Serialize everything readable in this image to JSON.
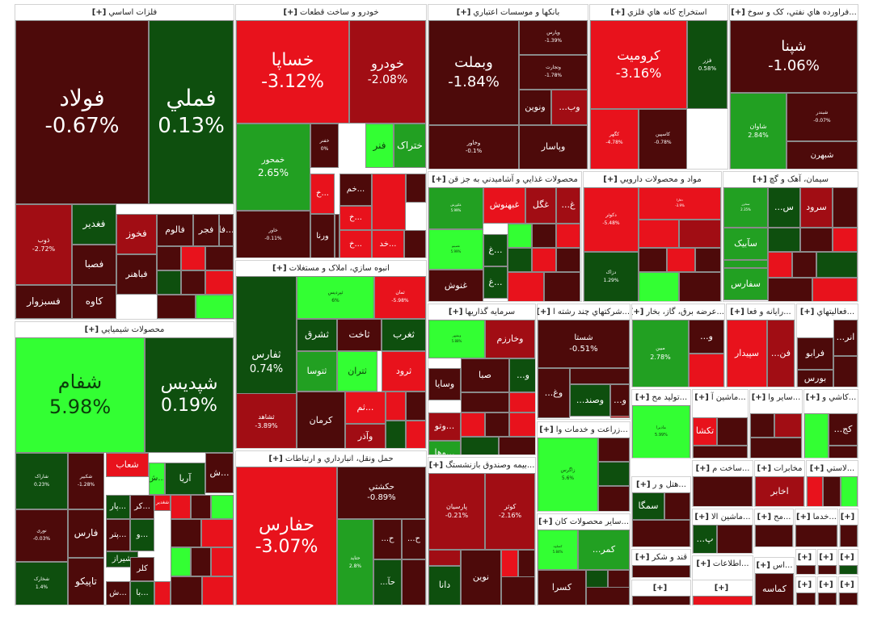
{
  "chart_data": {
    "type": "treemap",
    "title": "",
    "unit": "%",
    "sectors": [
      {
        "id": "s1",
        "name": "فلزات اساسي",
        "plus": "[+]",
        "tiles": [
          {
            "id": "t1",
            "symbol": "فولاد",
            "change": "-0.67%",
            "value": -0.67
          },
          {
            "id": "t2",
            "symbol": "فملي",
            "change": "0.13%",
            "value": 0.13
          },
          {
            "id": "t3",
            "symbol": "ذوب",
            "change": "-2.72%",
            "value": -2.72
          },
          {
            "id": "t4",
            "symbol": "فسبزوار"
          },
          {
            "id": "t5",
            "symbol": "فخوز"
          },
          {
            "id": "t6",
            "symbol": "فالوم"
          },
          {
            "id": "t7",
            "symbol": "فجر"
          },
          {
            "id": "t8",
            "symbol": "فا..."
          },
          {
            "id": "t9",
            "symbol": "فغدير"
          },
          {
            "id": "t10",
            "symbol": "فصبا"
          },
          {
            "id": "t11",
            "symbol": "فباهنر"
          },
          {
            "id": "t12",
            "symbol": "کاوه"
          }
        ]
      },
      {
        "id": "s2",
        "name": "خودرو و ساخت قطعات",
        "plus": "[+]",
        "tiles": [
          {
            "id": "t13",
            "symbol": "خساپا",
            "change": "-3.12%",
            "value": -3.12
          },
          {
            "id": "t14",
            "symbol": "خودرو",
            "change": "-2.08%",
            "value": -2.08
          },
          {
            "id": "t15",
            "symbol": "خمحور",
            "change": "2.65%",
            "value": 2.65
          },
          {
            "id": "t16",
            "symbol": "خفنر",
            "change": "0%",
            "value": 0
          },
          {
            "id": "t17",
            "symbol": "فنر"
          },
          {
            "id": "t18",
            "symbol": "ختراک"
          },
          {
            "id": "t19",
            "symbol": "خاور",
            "change": "-0.11%",
            "value": -0.11
          },
          {
            "id": "t20",
            "symbol": "ورنا"
          },
          {
            "id": "t21",
            "symbol": "خ..."
          },
          {
            "id": "t22",
            "symbol": "خم..."
          },
          {
            "id": "t23",
            "symbol": "خ..."
          },
          {
            "id": "t24",
            "symbol": "خ..."
          },
          {
            "id": "t25",
            "symbol": "خد..."
          }
        ]
      },
      {
        "id": "s3",
        "name": "بانکها و موسسات اعتباري",
        "plus": "[+]",
        "tiles": [
          {
            "id": "t26",
            "symbol": "وبملت",
            "change": "-1.84%",
            "value": -1.84
          },
          {
            "id": "t27",
            "symbol": "وپارس",
            "change": "-1.39%",
            "value": -1.39
          },
          {
            "id": "t28",
            "symbol": "وتجارت",
            "change": "-1.78%",
            "value": -1.78
          },
          {
            "id": "t29",
            "symbol": "ونوين"
          },
          {
            "id": "t30",
            "symbol": "...وب"
          },
          {
            "id": "t31",
            "symbol": "وخاور",
            "change": "-0.1%",
            "value": -0.1
          },
          {
            "id": "t32",
            "symbol": "وپاسار"
          }
        ]
      },
      {
        "id": "s4",
        "name": "استخراج کانه هاي فلزي",
        "plus": "[+]",
        "tiles": [
          {
            "id": "t33",
            "symbol": "کروميت",
            "change": "-3.16%",
            "value": -3.16
          },
          {
            "id": "t34",
            "symbol": "فزر",
            "change": "0.58%",
            "value": 0.58
          },
          {
            "id": "t35",
            "symbol": "کگهر",
            "change": "-4.78%",
            "value": -4.78
          },
          {
            "id": "t36",
            "symbol": "کاسپين",
            "change": "-0.78%",
            "value": -0.78
          }
        ]
      },
      {
        "id": "s5",
        "name": "...فراورده هاي نفتي، کک و سوخ",
        "plus": "[+]",
        "tiles": [
          {
            "id": "t37",
            "symbol": "شپنا",
            "change": "-1.06%",
            "value": -1.06
          },
          {
            "id": "t38",
            "symbol": "شاوان",
            "change": "2.84%",
            "value": 2.84
          },
          {
            "id": "t39",
            "symbol": "شبندر",
            "change": "-0.07%",
            "value": -0.07
          },
          {
            "id": "t40",
            "symbol": "شبهرن"
          }
        ]
      },
      {
        "id": "s6",
        "name": "محصولات غذايي و آشاميدني به جز قن",
        "plus": "[+]",
        "tiles": [
          {
            "id": "t41",
            "symbol": "غکورش",
            "change": "5.99%",
            "value": 5.99
          },
          {
            "id": "t42",
            "symbol": "غبهنوش"
          },
          {
            "id": "t43",
            "symbol": "غگل"
          },
          {
            "id": "t44",
            "symbol": "...غ"
          },
          {
            "id": "t45",
            "symbol": "غصینو",
            "change": "5.99%",
            "value": 5.99
          },
          {
            "id": "t46",
            "symbol": "غ..."
          },
          {
            "id": "t47",
            "symbol": "غ..."
          },
          {
            "id": "t48",
            "symbol": "غنوش"
          }
        ]
      },
      {
        "id": "s7",
        "name": "مواد و محصولات دارويي",
        "plus": "[+]",
        "tiles": [
          {
            "id": "t49",
            "symbol": "دکوثر",
            "change": "-5.48%",
            "value": -5.48
          },
          {
            "id": "t50",
            "symbol": "دفارا",
            "change": "-3.9%",
            "value": -3.9
          },
          {
            "id": "t51",
            "symbol": "دزاک",
            "change": "1.29%",
            "value": 1.29
          }
        ]
      },
      {
        "id": "s8",
        "name": "سيمان، آهک و گچ",
        "plus": "[+]",
        "tiles": [
          {
            "id": "t52",
            "symbol": "سخزر",
            "change": "2.35%",
            "value": 2.35
          },
          {
            "id": "t53",
            "symbol": "...س"
          },
          {
            "id": "t54",
            "symbol": "سرود"
          },
          {
            "id": "t55",
            "symbol": "سآبيک"
          },
          {
            "id": "t56",
            "symbol": "سفارس"
          }
        ]
      },
      {
        "id": "s9",
        "name": "انبوه سازي، املاک و مستغلات",
        "plus": "[+]",
        "tiles": [
          {
            "id": "t57",
            "symbol": "ثفارس",
            "change": "0.74%",
            "value": 0.74
          },
          {
            "id": "t58",
            "symbol": "ثپردیس",
            "change": "6%",
            "value": 6
          },
          {
            "id": "t59",
            "symbol": "ثمان",
            "change": "-5.98%",
            "value": -5.98
          },
          {
            "id": "t60",
            "symbol": "ثشرق"
          },
          {
            "id": "t61",
            "symbol": "ثاخت"
          },
          {
            "id": "t62",
            "symbol": "ثغرب"
          },
          {
            "id": "t63",
            "symbol": "ثتوسا"
          },
          {
            "id": "t64",
            "symbol": "ثتران"
          },
          {
            "id": "t65",
            "symbol": "ثرود"
          },
          {
            "id": "t66",
            "symbol": "ثشاهد",
            "change": "-3.89%",
            "value": -3.89
          },
          {
            "id": "t67",
            "symbol": "کرمان"
          },
          {
            "id": "t68",
            "symbol": "ثم..."
          },
          {
            "id": "t69",
            "symbol": "وآذر"
          }
        ]
      },
      {
        "id": "s10",
        "name": "محصولات شيميايي",
        "plus": "[+]",
        "tiles": [
          {
            "id": "t70",
            "symbol": "شفام",
            "change": "5.98%",
            "value": 5.98
          },
          {
            "id": "t71",
            "symbol": "شپدیس",
            "change": "0.19%",
            "value": 0.19
          },
          {
            "id": "t72",
            "symbol": "شاراک",
            "change": "0.23%",
            "value": 0.23
          },
          {
            "id": "t73",
            "symbol": "شکبیر",
            "change": "-1.28%",
            "value": -1.28
          },
          {
            "id": "t74",
            "symbol": "شغدیر"
          },
          {
            "id": "t75",
            "symbol": "شعاب"
          },
          {
            "id": "t76",
            "symbol": "ش..."
          },
          {
            "id": "t77",
            "symbol": "آريا"
          },
          {
            "id": "t78",
            "symbol": "ش..."
          },
          {
            "id": "t79",
            "symbol": "نوری",
            "change": "-0.03%",
            "value": -0.03
          },
          {
            "id": "t80",
            "symbol": "فارس"
          },
          {
            "id": "t81",
            "symbol": "پار..."
          },
          {
            "id": "t82",
            "symbol": "کر..."
          },
          {
            "id": "t83",
            "symbol": "پتر..."
          },
          {
            "id": "t84",
            "symbol": "و..."
          },
          {
            "id": "t85",
            "symbol": "شیراز"
          },
          {
            "id": "t86",
            "symbol": "شخارک",
            "change": "1.4%",
            "value": 1.4
          },
          {
            "id": "t87",
            "symbol": "تاپيکو"
          },
          {
            "id": "t88",
            "symbol": "کلر"
          },
          {
            "id": "t89",
            "symbol": "ش..."
          },
          {
            "id": "t90",
            "symbol": "با..."
          }
        ]
      },
      {
        "id": "s11",
        "name": "سرمايه گذاريها",
        "plus": "[+]",
        "tiles": [
          {
            "id": "t91",
            "symbol": "وبشهر",
            "change": "5.88%",
            "value": 5.88
          },
          {
            "id": "t92",
            "symbol": "وخارزم"
          },
          {
            "id": "t93",
            "symbol": "صبا"
          },
          {
            "id": "t94",
            "symbol": "...و"
          },
          {
            "id": "t95",
            "symbol": "وسايا"
          },
          {
            "id": "t96",
            "symbol": "وتو..."
          },
          {
            "id": "t97",
            "symbol": "وها..."
          }
        ]
      },
      {
        "id": "s12",
        "name": "...شرکتهاي چند رشته ا",
        "plus": "[+]",
        "tiles": [
          {
            "id": "t98",
            "symbol": "شستا",
            "change": "-0.51%",
            "value": -0.51
          },
          {
            "id": "t99",
            "symbol": "...وغ"
          },
          {
            "id": "t100",
            "symbol": "...وصند"
          },
          {
            "id": "t101",
            "symbol": "...و"
          }
        ]
      },
      {
        "id": "s13",
        "name": "...عرضه برق، گاز، بخار",
        "plus": "[+]",
        "tiles": [
          {
            "id": "t102",
            "symbol": "مبين",
            "change": "2.78%",
            "value": 2.78
          },
          {
            "id": "t103",
            "symbol": "...و"
          }
        ]
      },
      {
        "id": "s14",
        "name": "...رايانه و فعا",
        "plus": "[+]",
        "tiles": [
          {
            "id": "t104",
            "symbol": "سپيدار"
          },
          {
            "id": "t105",
            "symbol": "...فن"
          }
        ]
      },
      {
        "id": "s15",
        "name": "...فعاليتهاي",
        "plus": "[+]",
        "tiles": [
          {
            "id": "t106",
            "symbol": "...انر"
          },
          {
            "id": "t107",
            "symbol": "فرابو"
          },
          {
            "id": "t108",
            "symbol": "بورس"
          }
        ]
      },
      {
        "id": "s16",
        "name": "...توليد مح",
        "plus": "[+]",
        "tiles": [
          {
            "id": "t109",
            "symbol": "مادیرا",
            "change": "5.99%",
            "value": 5.99
          }
        ]
      },
      {
        "id": "s17",
        "name": "...ماشين آ",
        "plus": "[+]",
        "tiles": [
          {
            "id": "t110",
            "symbol": "تکشا"
          }
        ]
      },
      {
        "id": "s18",
        "name": "...ساير وا",
        "plus": "[+]",
        "tiles": []
      },
      {
        "id": "s19",
        "name": "...کاشي و",
        "plus": "[+]",
        "tiles": [
          {
            "id": "t111",
            "symbol": "...کج"
          }
        ]
      },
      {
        "id": "s20",
        "name": "...زراعت و خدمات وا",
        "plus": "[+]",
        "tiles": [
          {
            "id": "t112",
            "symbol": "زاگرس",
            "change": "5.6%",
            "value": 5.6
          }
        ]
      },
      {
        "id": "s21",
        "name": "...ساخت م",
        "plus": "[+]",
        "tiles": []
      },
      {
        "id": "s22",
        "name": "مخابرات",
        "plus": "[+]",
        "tiles": [
          {
            "id": "t113",
            "symbol": "اخابر"
          }
        ]
      },
      {
        "id": "s23",
        "name": "...لاستي",
        "plus": "[+]",
        "tiles": []
      },
      {
        "id": "s24",
        "name": "...هتل و ر",
        "plus": "[+]",
        "tiles": [
          {
            "id": "t114",
            "symbol": "سمگا"
          }
        ]
      },
      {
        "id": "s25",
        "name": "...ماشين الا",
        "plus": "[+]",
        "tiles": [
          {
            "id": "t115",
            "symbol": "...پ"
          }
        ]
      },
      {
        "id": "s26",
        "name": "...مح",
        "plus": "[+]",
        "tiles": []
      },
      {
        "id": "s27",
        "name": "...خدما",
        "plus": "[+]",
        "tiles": []
      },
      {
        "id": "s28",
        "name": "...بيمه وصندوق بازنشستگ",
        "plus": "[+]",
        "tiles": [
          {
            "id": "t116",
            "symbol": "پارسیان",
            "change": "-0.21%",
            "value": -0.21
          },
          {
            "id": "t117",
            "symbol": "کوثر",
            "change": "-2.16%",
            "value": -2.16
          },
          {
            "id": "t118",
            "symbol": "دانا"
          },
          {
            "id": "t119",
            "symbol": "نوين"
          }
        ]
      },
      {
        "id": "s29",
        "name": "...ساير محصولات کان",
        "plus": "[+]",
        "tiles": [
          {
            "id": "t120",
            "symbol": "کساوه",
            "change": "5.84%",
            "value": 5.84
          },
          {
            "id": "t121",
            "symbol": "...کمر"
          },
          {
            "id": "t122",
            "symbol": "کسرا"
          }
        ]
      },
      {
        "id": "s30",
        "name": "قند و شکر",
        "plus": "[+]",
        "tiles": []
      },
      {
        "id": "s31",
        "name": "...اطلاعات",
        "plus": "[+]",
        "tiles": [
          {
            "id": "t123",
            "symbol": "...ها"
          }
        ]
      },
      {
        "id": "s32",
        "name": "...اس",
        "plus": "[+]",
        "tiles": [
          {
            "id": "t124",
            "symbol": "کماسه"
          }
        ]
      },
      {
        "id": "s33",
        "name": "حمل ونقل، انبارداري و ارتباطات",
        "plus": "[+]",
        "tiles": [
          {
            "id": "t125",
            "symbol": "حفارس",
            "change": "-3.07%",
            "value": -3.07
          },
          {
            "id": "t126",
            "symbol": "حکشتي",
            "change": "-0.89%",
            "value": -0.89
          },
          {
            "id": "t127",
            "symbol": "حتاید",
            "change": "2.8%",
            "value": 2.8
          },
          {
            "id": "t128",
            "symbol": "...ح"
          },
          {
            "id": "t129",
            "symbol": "...ح"
          },
          {
            "id": "t130",
            "symbol": "...حآ"
          }
        ]
      },
      {
        "id": "s34",
        "name": "",
        "plus": "[+]",
        "tiles": []
      },
      {
        "id": "s35",
        "name": "",
        "plus": "[+]",
        "tiles": []
      },
      {
        "id": "s36",
        "name": "",
        "plus": "[+]",
        "tiles": []
      },
      {
        "id": "s37",
        "name": "",
        "plus": "[+]",
        "tiles": []
      },
      {
        "id": "s38",
        "name": "",
        "plus": "[+]",
        "tiles": []
      },
      {
        "id": "s39",
        "name": "",
        "plus": "[+]",
        "tiles": []
      },
      {
        "id": "s40",
        "name": "",
        "plus": "[+]",
        "tiles": []
      },
      {
        "id": "s41",
        "name": "",
        "plus": "[+]",
        "tiles": []
      },
      {
        "id": "s42",
        "name": "",
        "plus": "[+]",
        "tiles": []
      }
    ]
  },
  "colors": {
    "strong_green": "#33ff33",
    "mid_green": "#22a022",
    "dark_green": "#0e4f0e",
    "dark_red": "#4d0a0a",
    "mid_red": "#a10d14",
    "strong_red": "#e8121c",
    "neutral": "#5a1010"
  }
}
